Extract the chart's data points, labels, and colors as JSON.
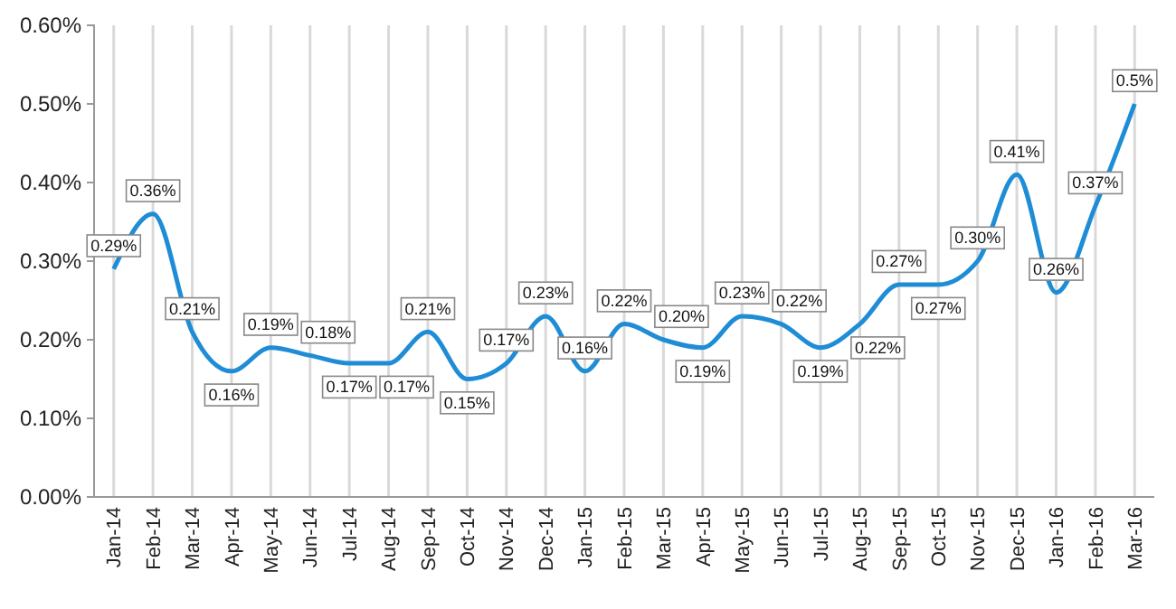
{
  "chart_data": {
    "type": "line",
    "categories": [
      "Jan-14",
      "Feb-14",
      "Mar-14",
      "Apr-14",
      "May-14",
      "Jun-14",
      "Jul-14",
      "Aug-14",
      "Sep-14",
      "Oct-14",
      "Nov-14",
      "Dec-14",
      "Jan-15",
      "Feb-15",
      "Mar-15",
      "Apr-15",
      "May-15",
      "Jun-15",
      "Jul-15",
      "Aug-15",
      "Sep-15",
      "Oct-15",
      "Nov-15",
      "Dec-15",
      "Jan-16",
      "Feb-16",
      "Mar-16"
    ],
    "series": [
      {
        "color": "#1f8dd6",
        "values": [
          0.29,
          0.36,
          0.21,
          0.16,
          0.19,
          0.18,
          0.17,
          0.17,
          0.21,
          0.15,
          0.17,
          0.23,
          0.16,
          0.22,
          0.2,
          0.19,
          0.23,
          0.22,
          0.19,
          0.22,
          0.27,
          0.27,
          0.3,
          0.41,
          0.26,
          0.37,
          0.5
        ],
        "value_labels": [
          "0.29%",
          "0.36%",
          "0.21%",
          "0.16%",
          "0.19%",
          "0.18%",
          "0.17%",
          "0.17%",
          "0.21%",
          "0.15%",
          "0.17%",
          "0.23%",
          "0.16%",
          "0.22%",
          "0.20%",
          "0.19%",
          "0.23%",
          "0.22%",
          "0.19%",
          "0.22%",
          "0.27%",
          "0.27%",
          "0.30%",
          "0.41%",
          "0.26%",
          "0.37%",
          "0.5%"
        ]
      }
    ],
    "ylim": [
      0,
      0.6
    ],
    "yticks": [
      {
        "value": 0,
        "label": "0.00%"
      },
      {
        "value": 0.1,
        "label": "0.10%"
      },
      {
        "value": 0.2,
        "label": "0.20%"
      },
      {
        "value": 0.3,
        "label": "0.30%"
      },
      {
        "value": 0.4,
        "label": "0.40%"
      },
      {
        "value": 0.5,
        "label": "0.50%"
      },
      {
        "value": 0.6,
        "label": "0.60%"
      }
    ],
    "grid": "x",
    "marker": "none",
    "line_style": "solid"
  }
}
